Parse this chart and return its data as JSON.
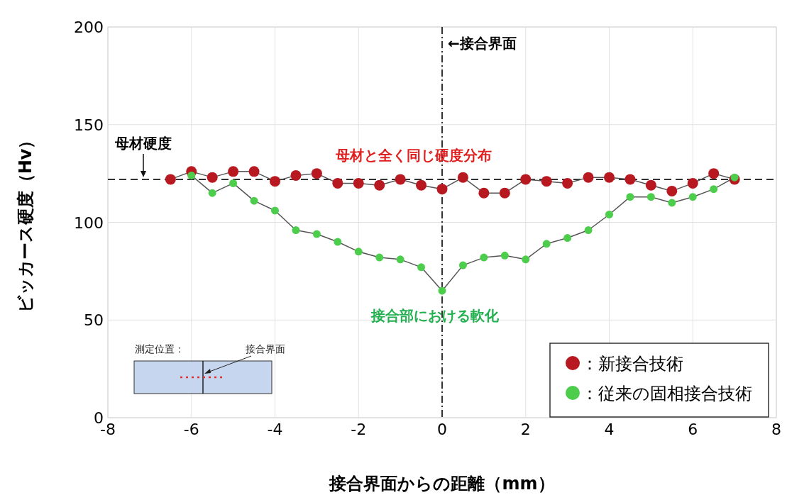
{
  "chart_data": {
    "type": "line",
    "xlabel": "接合界面からの距離（mm）",
    "ylabel": "ビッカース硬度（Hv）",
    "xlim": [
      -8,
      8
    ],
    "xticks": [
      -8,
      -6,
      -4,
      -2,
      0,
      2,
      4,
      6,
      8
    ],
    "ylim": [
      0,
      200
    ],
    "yticks": [
      0,
      50,
      100,
      150,
      200
    ],
    "grid": true,
    "legend": "bottom right",
    "marker": "circle",
    "line_style": "solid",
    "x": [
      -6.5,
      -6,
      -5.5,
      -5,
      -4.5,
      -4,
      -3.5,
      -3,
      -2.5,
      -2,
      -1.5,
      -1,
      -0.5,
      0,
      0.5,
      1,
      1.5,
      2,
      2.5,
      3,
      3.5,
      4,
      4.5,
      5,
      5.5,
      6,
      6.5,
      7
    ],
    "series": [
      {
        "name": "：新接合技術",
        "color": "#b81820",
        "values": [
          122,
          126,
          123,
          126,
          126,
          121,
          124,
          125,
          120,
          120,
          119,
          122,
          119,
          117,
          123,
          115,
          115,
          122,
          121,
          120,
          123,
          123,
          122,
          119,
          116,
          120,
          125,
          122
        ]
      },
      {
        "name": "：従来の固相接合技術",
        "color": "#4ccd4c",
        "values": [
          null,
          124,
          115,
          120,
          111,
          106,
          96,
          94,
          90,
          85,
          82,
          81,
          77,
          65,
          78,
          82,
          83,
          81,
          89,
          92,
          96,
          104,
          113,
          113,
          110,
          113,
          117,
          123
        ]
      }
    ],
    "ref_lines": [
      {
        "axis": "y",
        "value": 122,
        "label": "母材硬度",
        "line_style": "dashed",
        "color": "#333333"
      },
      {
        "axis": "x",
        "value": 0,
        "label": "←接合界面",
        "line_style": "dashdot",
        "color": "#333333"
      }
    ],
    "annotations": [
      "母材と全く同じ硬度分布",
      "接合部における軟化",
      "測定位置：",
      "接合界面"
    ]
  }
}
